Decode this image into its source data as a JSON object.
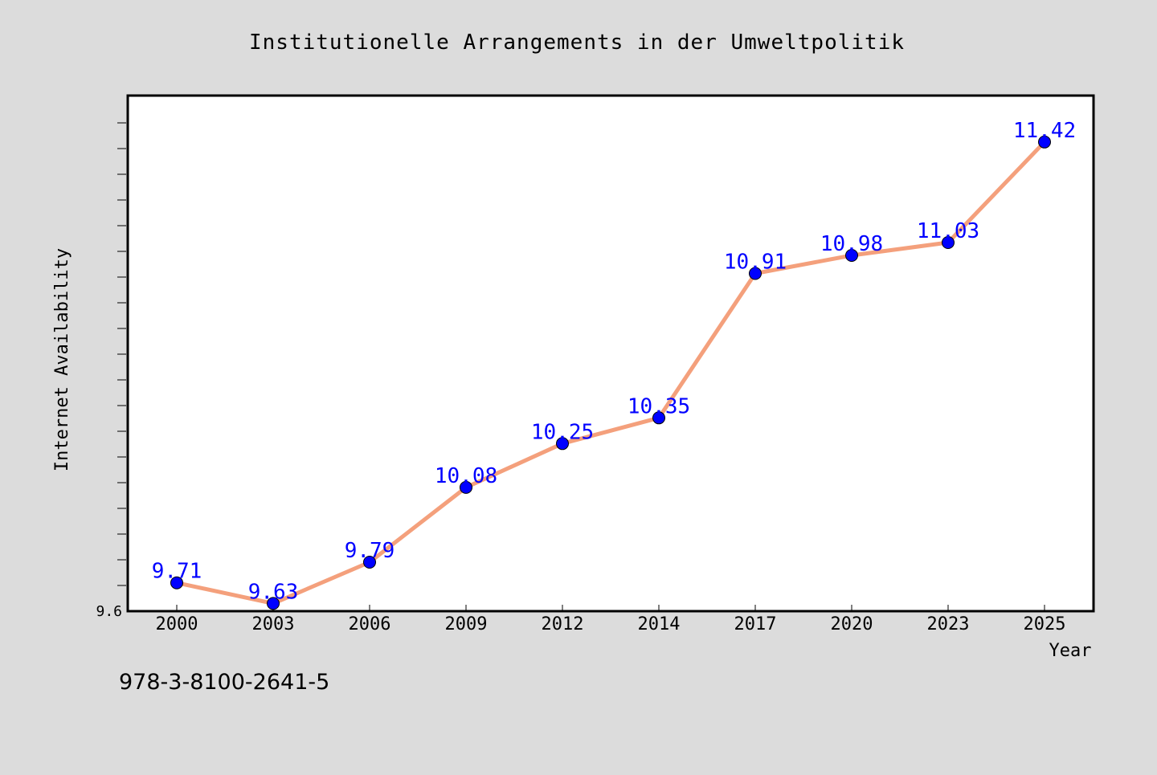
{
  "chart_data": {
    "type": "line",
    "title": "Institutionelle Arrangements in der Umweltpolitik",
    "xlabel": "Year",
    "ylabel": "Internet Availability",
    "categories": [
      "2000",
      "2003",
      "2006",
      "2009",
      "2012",
      "2014",
      "2017",
      "2020",
      "2023",
      "2025"
    ],
    "values": [
      9.71,
      9.63,
      9.79,
      10.08,
      10.25,
      10.35,
      10.91,
      10.98,
      11.03,
      11.42
    ],
    "data_labels": [
      "9.71",
      "9.63",
      "9.79",
      "10.08",
      "10.25",
      "10.35",
      "10.91",
      "10.98",
      "11.03",
      "11.42"
    ],
    "y_tick_labels": [
      "9.6"
    ],
    "ylim": [
      9.6,
      11.6
    ],
    "grid": false,
    "colors": {
      "line": "#f4a07c",
      "marker": "#0000ff",
      "data_label": "#0000ff",
      "background": "#dcdcdc",
      "plot_background": "#ffffff"
    }
  },
  "footer": {
    "code": "978-3-8100-2641-5"
  }
}
